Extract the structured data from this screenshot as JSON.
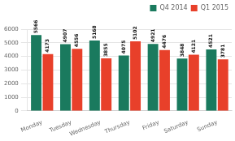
{
  "chart_data": {
    "type": "bar",
    "categories": [
      "Monday",
      "Tuesday",
      "Wednesday",
      "Thursday",
      "Friday",
      "Saturday",
      "Sunday"
    ],
    "series": [
      {
        "name": "Q4 2014",
        "color": "#1a7a5e",
        "values": [
          5566,
          4907,
          5168,
          4075,
          4921,
          3848,
          4521
        ]
      },
      {
        "name": "Q1 2015",
        "color": "#e8402a",
        "values": [
          4173,
          4556,
          3855,
          5102,
          4476,
          4121,
          3781
        ]
      }
    ],
    "ylim": [
      0,
      6000
    ],
    "yticks": [
      0,
      1000,
      2000,
      3000,
      4000,
      5000,
      6000
    ],
    "grid": true,
    "legend": "upper right",
    "data_labels": true
  }
}
